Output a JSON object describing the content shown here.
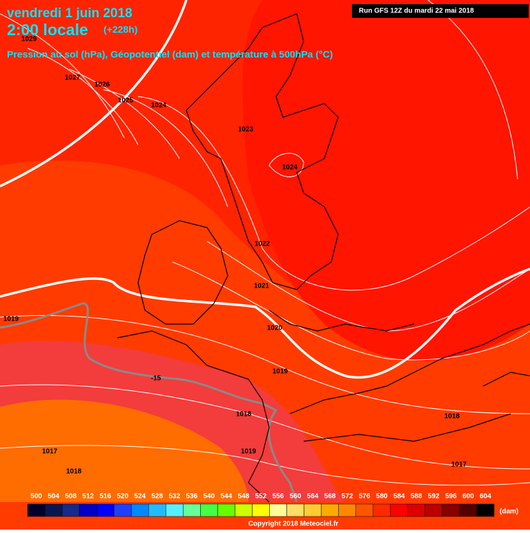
{
  "header": {
    "date": "vendredi 1 juin 2018",
    "time": "2:00 locale",
    "lead": "(+228h)",
    "subtitle": "Pression au sol (hPa), Géopotentiel (dam) et température à 500hPa (°C)",
    "run": "Run GFS 12Z du mardi 22 mai 2018"
  },
  "map_labels": [
    "1029",
    "1027",
    "1026",
    "1025",
    "1024",
    "1023",
    "1024",
    "1022",
    "1021",
    "1020",
    "1019",
    "1019",
    "1018",
    "1018",
    "1019",
    "1017",
    "1018",
    "1017",
    "-15"
  ],
  "legend": {
    "unit": "(dam)",
    "items": [
      {
        "value": 500,
        "color": "#00002a"
      },
      {
        "value": 504,
        "color": "#0a1650"
      },
      {
        "value": 508,
        "color": "#152a8a"
      },
      {
        "value": 512,
        "color": "#0000c8"
      },
      {
        "value": 516,
        "color": "#0000ff"
      },
      {
        "value": 520,
        "color": "#2040ff"
      },
      {
        "value": 524,
        "color": "#0088ff"
      },
      {
        "value": 528,
        "color": "#22bbff"
      },
      {
        "value": 532,
        "color": "#55f0ff"
      },
      {
        "value": 536,
        "color": "#66ff99"
      },
      {
        "value": 540,
        "color": "#44ff44"
      },
      {
        "value": 544,
        "color": "#66ff00"
      },
      {
        "value": 548,
        "color": "#ccff00"
      },
      {
        "value": 552,
        "color": "#ffff00"
      },
      {
        "value": 556,
        "color": "#ffff99"
      },
      {
        "value": 560,
        "color": "#ffdd66"
      },
      {
        "value": 564,
        "color": "#ffcc33"
      },
      {
        "value": 568,
        "color": "#ffaa00"
      },
      {
        "value": 572,
        "color": "#ff8800"
      },
      {
        "value": 576,
        "color": "#ff5500"
      },
      {
        "value": 580,
        "color": "#ff2a00"
      },
      {
        "value": 584,
        "color": "#ff0000"
      },
      {
        "value": 588,
        "color": "#dd0000"
      },
      {
        "value": 592,
        "color": "#bb0000"
      },
      {
        "value": 596,
        "color": "#880000"
      },
      {
        "value": 600,
        "color": "#550000"
      },
      {
        "value": 604,
        "color": "#000000"
      }
    ]
  },
  "footer": {
    "copyright": "Copyright 2018 Meteociel.fr"
  }
}
